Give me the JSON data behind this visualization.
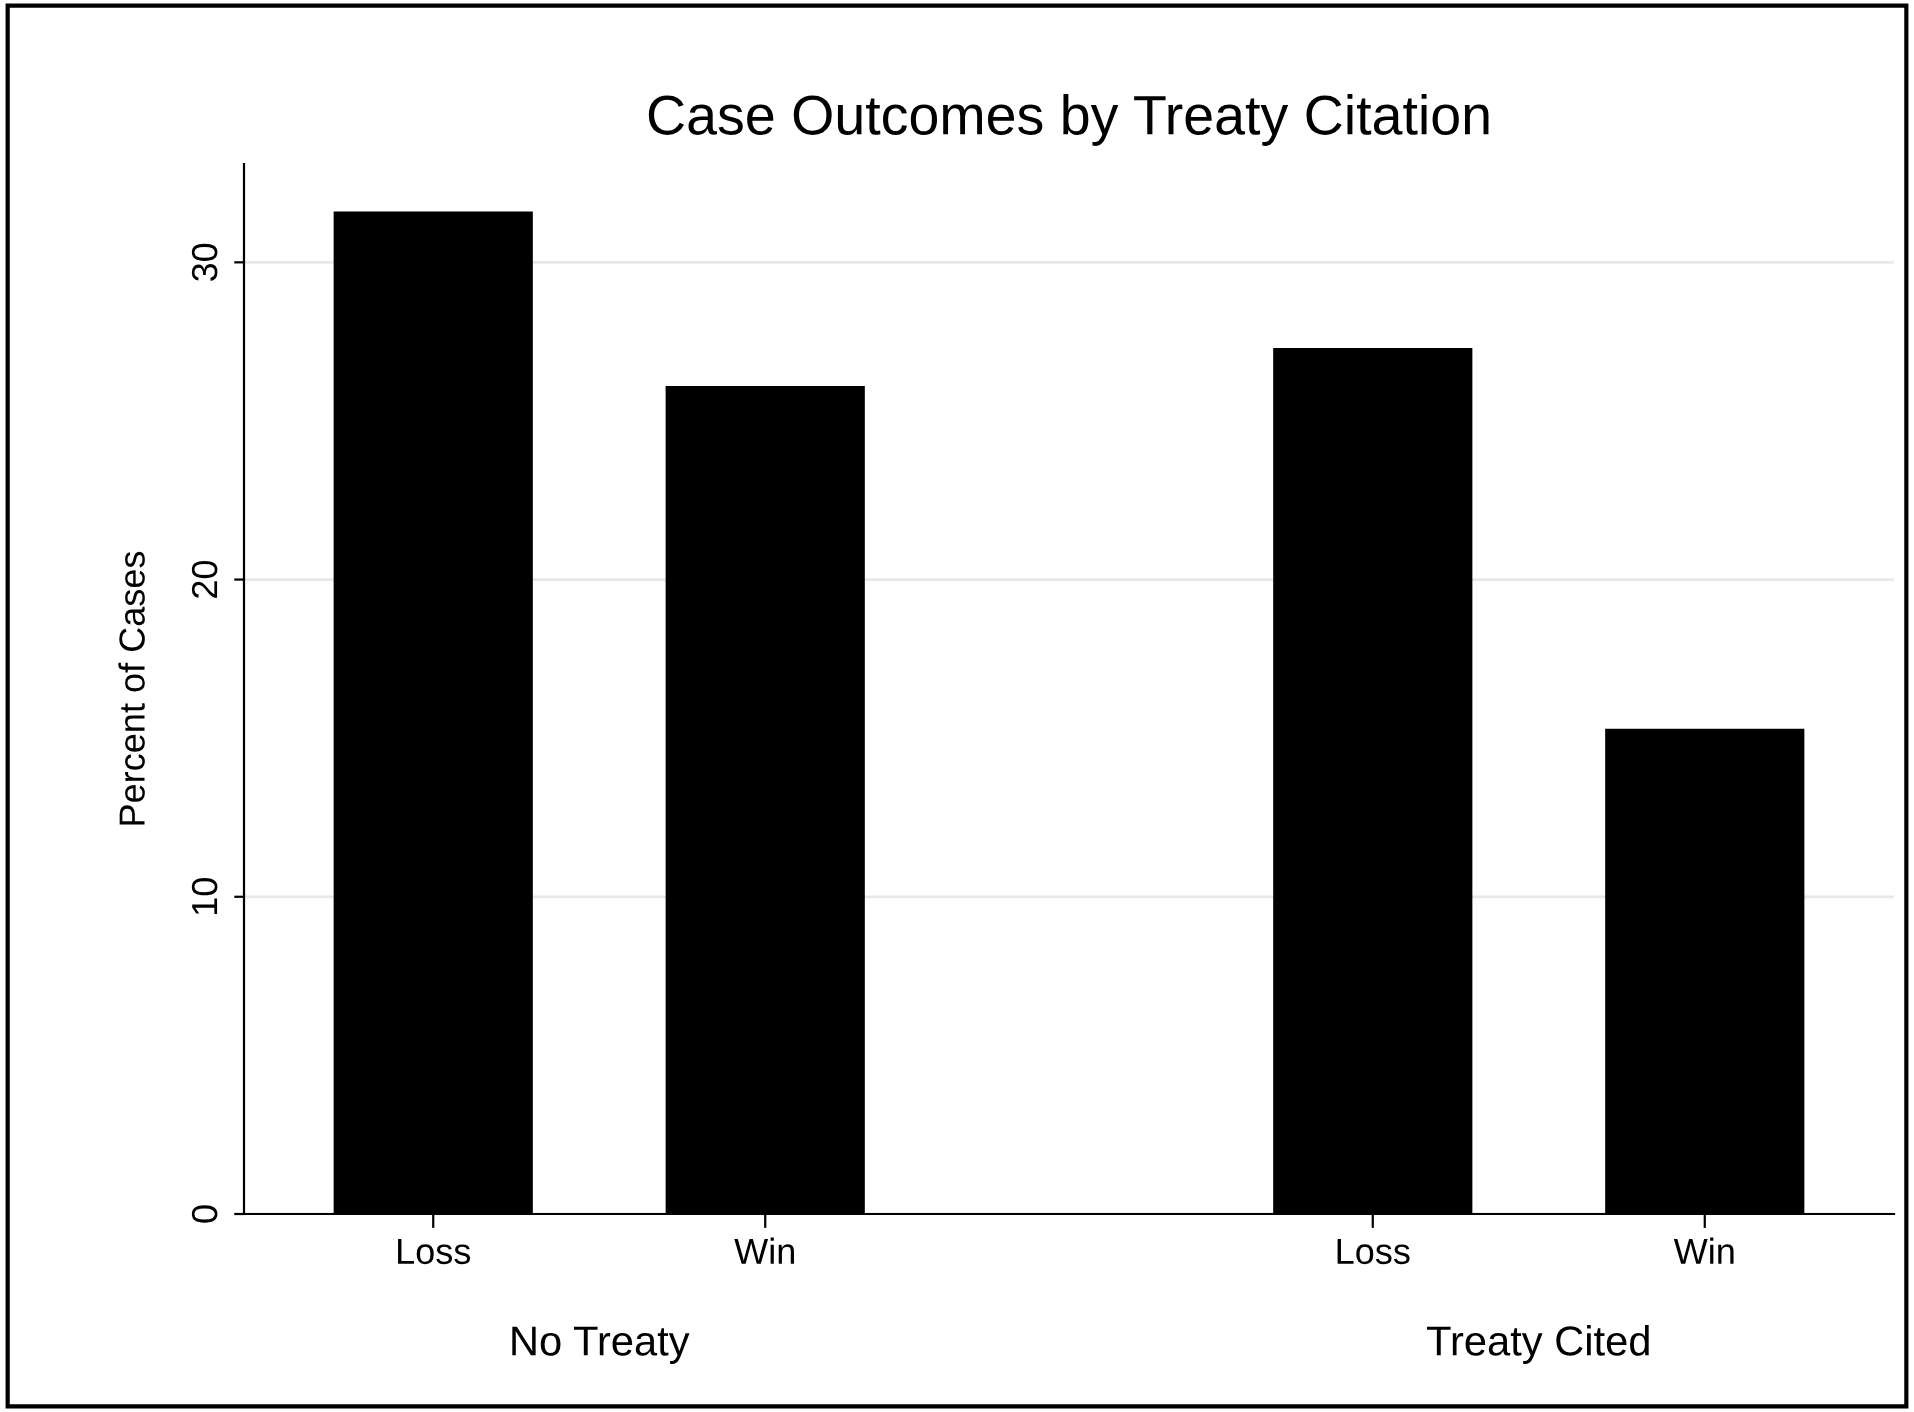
{
  "chart_data": {
    "type": "bar",
    "title": "Case Outcomes by Treaty Citation",
    "ylabel": "Percent of Cases",
    "categories": [
      "Loss",
      "Win",
      "Loss",
      "Win"
    ],
    "values": [
      31.6,
      26.1,
      27.3,
      15.3
    ],
    "color": "#000000",
    "ylim": [
      0,
      33.1
    ],
    "yticks": [
      0,
      10,
      20,
      30
    ],
    "grid": "y",
    "annotations": [
      "No Treaty",
      "Treaty Cited"
    ]
  }
}
